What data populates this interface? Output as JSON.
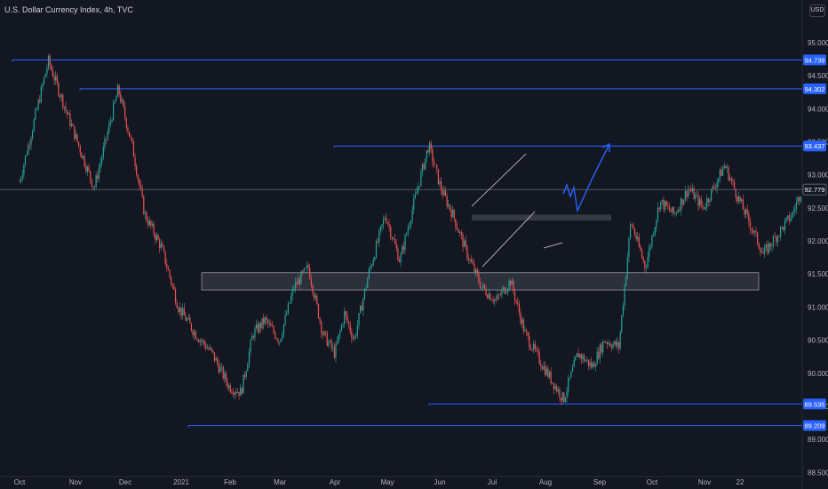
{
  "header": {
    "title": "U.S. Dollar Currency Index, 4h, TVC",
    "currency": "USD"
  },
  "colors": {
    "background": "#131722",
    "up": "#26a69a",
    "down": "#ef5350",
    "level_line": "#2962ff",
    "drawing": "#d1d4dc",
    "projection": "#2962ff",
    "axis_text": "#b2b5be"
  },
  "chart_data": {
    "type": "candlestick",
    "title": "U.S. Dollar Currency Index, 4h, TVC",
    "xlabel": "",
    "ylabel": "",
    "ylim": [
      88.45,
      95.35
    ],
    "x_tick_labels": [
      "Oct",
      "Nov",
      "Dec",
      "2021",
      "Feb",
      "Mar",
      "Apr",
      "May",
      "Jun",
      "Jul",
      "Aug",
      "Sep",
      "Oct",
      "Nov",
      "22"
    ],
    "y_tick_labels": [
      "95.000",
      "94.500",
      "94.000",
      "93.500",
      "93.000",
      "92.500",
      "92.000",
      "91.500",
      "91.000",
      "90.500",
      "90.000",
      "89.500",
      "89.000",
      "88.500"
    ],
    "y_ticks": [
      95.0,
      94.5,
      94.0,
      93.5,
      93.0,
      92.5,
      92.0,
      91.5,
      91.0,
      90.5,
      90.0,
      89.5,
      89.0,
      88.5
    ],
    "price_path": [
      [
        0,
        92.9
      ],
      [
        1.2,
        94.72
      ],
      [
        2.0,
        93.9
      ],
      [
        2.6,
        93.3
      ],
      [
        3.1,
        92.8
      ],
      [
        3.7,
        93.7
      ],
      [
        4.1,
        94.3
      ],
      [
        4.7,
        93.4
      ],
      [
        5.2,
        92.4
      ],
      [
        5.9,
        91.9
      ],
      [
        6.6,
        91.0
      ],
      [
        7.3,
        90.6
      ],
      [
        8.0,
        90.3
      ],
      [
        8.7,
        89.8
      ],
      [
        9.2,
        89.71
      ],
      [
        9.7,
        90.6
      ],
      [
        10.2,
        90.8
      ],
      [
        10.8,
        90.5
      ],
      [
        11.4,
        91.3
      ],
      [
        12.0,
        91.6
      ],
      [
        12.6,
        90.6
      ],
      [
        13.1,
        90.3
      ],
      [
        13.5,
        90.9
      ],
      [
        13.9,
        90.5
      ],
      [
        14.5,
        91.5
      ],
      [
        15.2,
        92.4
      ],
      [
        15.8,
        91.7
      ],
      [
        16.4,
        92.6
      ],
      [
        17.0,
        93.45
      ],
      [
        17.5,
        92.8
      ],
      [
        18.0,
        92.4
      ],
      [
        18.6,
        91.8
      ],
      [
        19.2,
        91.3
      ],
      [
        19.8,
        91.1
      ],
      [
        20.4,
        91.4
      ],
      [
        21.0,
        90.6
      ],
      [
        21.6,
        90.2
      ],
      [
        22.1,
        89.9
      ],
      [
        22.6,
        89.6
      ],
      [
        23.2,
        90.3
      ],
      [
        23.8,
        90.1
      ],
      [
        24.3,
        90.5
      ],
      [
        24.9,
        90.4
      ],
      [
        25.4,
        92.3
      ],
      [
        26.0,
        91.6
      ],
      [
        26.6,
        92.6
      ],
      [
        27.2,
        92.4
      ],
      [
        27.8,
        92.8
      ],
      [
        28.4,
        92.5
      ],
      [
        28.9,
        92.85
      ],
      [
        29.3,
        93.15
      ],
      [
        29.8,
        92.7
      ],
      [
        30.3,
        92.3
      ],
      [
        30.9,
        91.8
      ],
      [
        31.5,
        92.1
      ],
      [
        32.1,
        92.4
      ],
      [
        32.5,
        92.78
      ]
    ],
    "horizontal_levels": [
      {
        "label": "94.739",
        "value": 94.739
      },
      {
        "label": "94.302",
        "value": 94.302
      },
      {
        "label": "93.437",
        "value": 93.437
      },
      {
        "label": "92.779",
        "value": 92.779
      },
      {
        "label": "89.535",
        "value": 89.535
      },
      {
        "label": "89.209",
        "value": 89.209
      }
    ],
    "zones": [
      {
        "from": 91.26,
        "to": 91.52
      },
      {
        "from": 92.31,
        "to": 92.4
      }
    ],
    "grid": false,
    "legend": "none"
  }
}
